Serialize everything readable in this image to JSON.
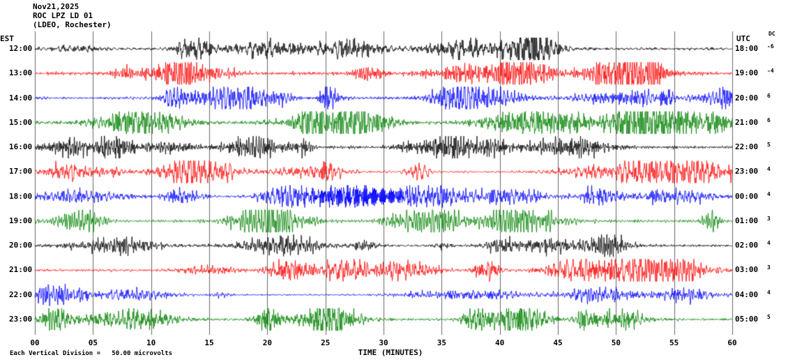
{
  "header": {
    "date": "Nov21,2025",
    "station": "ROC LPZ LD 01",
    "location": "(LDEO, Rochester)"
  },
  "axes": {
    "left_label": "EST",
    "right_label": "UTC",
    "dc_label": "DC",
    "x_title": "TIME (MINUTES)",
    "x_ticks": [
      "00",
      "05",
      "10",
      "15",
      "20",
      "25",
      "30",
      "35",
      "40",
      "45",
      "50",
      "55",
      "60"
    ]
  },
  "footer": {
    "scale_note": "Each Vertical Division =   50.00 microvolts"
  },
  "chart_data": {
    "type": "line",
    "subtype": "seismogram-helicorder",
    "title": "ROC LPZ LD 01 (LDEO, Rochester) Nov21,2025",
    "xlabel": "TIME (MINUTES)",
    "ylabel": "",
    "x_range_minutes": [
      0,
      60
    ],
    "x_tick_interval_minutes": 5,
    "grid": "vertical-only",
    "grid_color": "#666666",
    "vertical_division_microvolts": 50.0,
    "trace_colors_cycle": [
      "#000000",
      "#ff0000",
      "#0000ff",
      "#008000"
    ],
    "rows": [
      {
        "est": "12:00",
        "utc": "18:00",
        "dc": "-6",
        "color": "#000000",
        "seed": 3,
        "rel_amp": 7
      },
      {
        "est": "13:00",
        "utc": "19:00",
        "dc": "-4",
        "color": "#ff0000",
        "seed": 17,
        "rel_amp": 9
      },
      {
        "est": "14:00",
        "utc": "20:00",
        "dc": "6",
        "color": "#0000ff",
        "seed": 42,
        "rel_amp": 8
      },
      {
        "est": "15:00",
        "utc": "21:00",
        "dc": "6",
        "color": "#008000",
        "seed": 7,
        "rel_amp": 9
      },
      {
        "est": "16:00",
        "utc": "22:00",
        "dc": "5",
        "color": "#000000",
        "seed": 29,
        "rel_amp": 8
      },
      {
        "est": "17:00",
        "utc": "23:00",
        "dc": "4",
        "color": "#ff0000",
        "seed": 88,
        "rel_amp": 7
      },
      {
        "est": "18:00",
        "utc": "00:00",
        "dc": "4",
        "color": "#0000ff",
        "seed": 55,
        "rel_amp": 6,
        "event": {
          "center": 28,
          "width": 3.5,
          "freq": 16,
          "amp": 12
        }
      },
      {
        "est": "19:00",
        "utc": "01:00",
        "dc": "3",
        "color": "#008000",
        "seed": 64,
        "rel_amp": 8
      },
      {
        "est": "20:00",
        "utc": "02:00",
        "dc": "4",
        "color": "#000000",
        "seed": 23,
        "rel_amp": 7
      },
      {
        "est": "21:00",
        "utc": "03:00",
        "dc": "3",
        "color": "#ff0000",
        "seed": 91,
        "rel_amp": 7
      },
      {
        "est": "22:00",
        "utc": "04:00",
        "dc": "4",
        "color": "#0000ff",
        "seed": 12,
        "rel_amp": 5
      },
      {
        "est": "23:00",
        "utc": "05:00",
        "dc": "5",
        "color": "#008000",
        "seed": 77,
        "rel_amp": 7
      }
    ]
  }
}
